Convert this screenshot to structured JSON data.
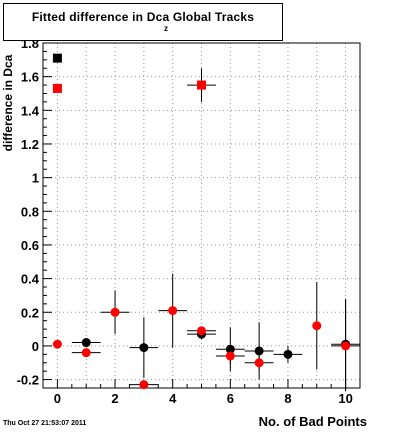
{
  "title": {
    "main": "Fitted difference in Dca  Global Tracks",
    "subscript": "z"
  },
  "timestamp": "Thu Oct 27 21:53:07 2011",
  "colors": {
    "series_black": "#000000",
    "series_red": "#ff0000",
    "grid": "#9a9a9a",
    "axis": "#000000"
  },
  "chart_data": {
    "type": "scatter",
    "title": "Fitted difference in Dca  Global Tracks",
    "xlabel": "No. of Bad Points",
    "ylabel": "difference in Dca",
    "xlim": [
      -0.5,
      10.5
    ],
    "ylim": [
      -0.25,
      1.8
    ],
    "grid": true,
    "x_ticks": [
      0,
      2,
      4,
      6,
      8,
      10
    ],
    "y_ticks": [
      -0.2,
      0,
      0.2,
      0.4,
      0.6,
      0.8,
      1,
      1.2,
      1.4,
      1.6,
      1.8
    ],
    "y_tick_labels": [
      "-0.2",
      "0",
      "0.2",
      "0.4",
      "0.6",
      "0.8",
      "1",
      "1.2",
      "1.4",
      "1.6",
      "1.8"
    ],
    "x_tick_labels": [
      "0",
      "2",
      "4",
      "6",
      "8",
      "10"
    ],
    "series": [
      {
        "color": "#000000",
        "points": [
          {
            "x": 0,
            "y": 1.71,
            "marker": "square"
          },
          {
            "x": 1,
            "y": 0.02,
            "marker": "circle",
            "xerr": 0.5,
            "yerr": 0.0
          },
          {
            "x": 3,
            "y": -0.01,
            "marker": "circle",
            "xerr": 0.5,
            "yerr": 0.18
          },
          {
            "x": 5,
            "y": 0.07,
            "marker": "circle",
            "xerr": 0.5,
            "yerr": 0.03
          },
          {
            "x": 6,
            "y": -0.02,
            "marker": "circle",
            "xerr": 0.5,
            "yerr": 0.13
          },
          {
            "x": 7,
            "y": -0.03,
            "marker": "circle",
            "xerr": 0.5,
            "yerr": 0.17
          },
          {
            "x": 8,
            "y": -0.05,
            "marker": "circle",
            "xerr": 0.5,
            "yerr": 0.05
          },
          {
            "x": 10,
            "y": 0.01,
            "marker": "circle",
            "xerr": 0.5,
            "yerr": 0.27
          }
        ]
      },
      {
        "color": "#ff0000",
        "points": [
          {
            "x": 0,
            "y": 1.53,
            "marker": "square"
          },
          {
            "x": 5,
            "y": 1.55,
            "marker": "square",
            "xerr": 0.5,
            "yerr": 0.1
          },
          {
            "x": 0,
            "y": 0.01,
            "marker": "circle"
          },
          {
            "x": 1,
            "y": -0.04,
            "marker": "circle",
            "xerr": 0.5,
            "yerr": 0.01
          },
          {
            "x": 2,
            "y": 0.2,
            "marker": "circle",
            "xerr": 0.5,
            "yerr": 0.13
          },
          {
            "x": 3,
            "y": -0.23,
            "marker": "circle",
            "xerr": 0.5,
            "yerr": 0.0
          },
          {
            "x": 4,
            "y": 0.21,
            "marker": "circle",
            "xerr": 0.5,
            "yerr": 0.22
          },
          {
            "x": 5,
            "y": 0.09,
            "marker": "circle",
            "xerr": 0.5,
            "yerr": 0.02
          },
          {
            "x": 6,
            "y": -0.06,
            "marker": "circle",
            "xerr": 0.5,
            "yerr": 0.05
          },
          {
            "x": 7,
            "y": -0.1,
            "marker": "circle",
            "xerr": 0.5,
            "yerr": 0.04
          },
          {
            "x": 9,
            "y": 0.12,
            "marker": "circle",
            "xerr": 0.0,
            "yerr": 0.26
          },
          {
            "x": 10,
            "y": 0.0,
            "marker": "circle",
            "xerr": 0.5,
            "yerr": 0.27
          }
        ]
      }
    ]
  }
}
